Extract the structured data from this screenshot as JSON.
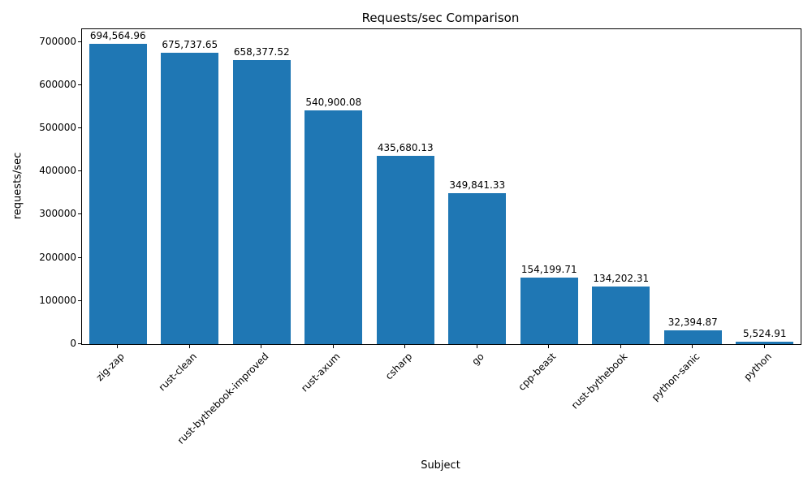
{
  "chart_data": {
    "type": "bar",
    "title": "Requests/sec Comparison",
    "xlabel": "Subject",
    "ylabel": "requests/sec",
    "categories": [
      "zig-zap",
      "rust-clean",
      "rust-bythebook-improved",
      "rust-axum",
      "csharp",
      "go",
      "cpp-beast",
      "rust-bythebook",
      "python-sanic",
      "python"
    ],
    "values": [
      694564.96,
      675737.65,
      658377.52,
      540900.08,
      435680.13,
      349841.33,
      154199.71,
      134202.31,
      32394.87,
      5524.91
    ],
    "bar_labels": [
      "694,564.96",
      "675,737.65",
      "658,377.52",
      "540,900.08",
      "435,680.13",
      "349,841.33",
      "154,199.71",
      "134,202.31",
      "32,394.87",
      "5,524.91"
    ],
    "yticks": [
      0,
      100000,
      200000,
      300000,
      400000,
      500000,
      600000,
      700000
    ],
    "ylim": [
      0,
      729293
    ],
    "bar_color": "#1f77b4",
    "background_color": "#ffffff",
    "grid": false,
    "legend": null
  }
}
